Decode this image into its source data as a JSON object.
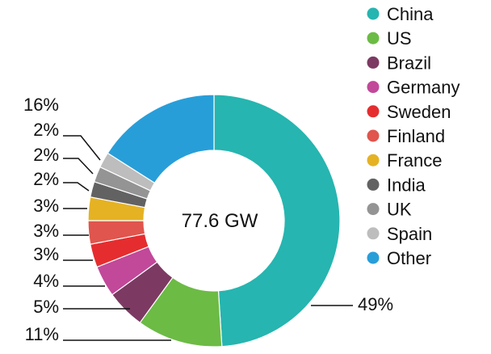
{
  "chart_data": {
    "type": "pie",
    "donut": true,
    "center_label": "77.6 GW",
    "legend_position": "top-right",
    "slices": [
      {
        "name": "China",
        "value": 49,
        "label": "49%",
        "color": "#26b5b0"
      },
      {
        "name": "US",
        "value": 11,
        "label": "11%",
        "color": "#6cbb45"
      },
      {
        "name": "Brazil",
        "value": 5,
        "label": "5%",
        "color": "#7c3a62"
      },
      {
        "name": "Germany",
        "value": 4,
        "label": "4%",
        "color": "#c2489a"
      },
      {
        "name": "Sweden",
        "value": 3,
        "label": "3%",
        "color": "#e52d2f"
      },
      {
        "name": "Finland",
        "value": 3,
        "label": "3%",
        "color": "#e0554d"
      },
      {
        "name": "France",
        "value": 3,
        "label": "3%",
        "color": "#e5b224"
      },
      {
        "name": "India",
        "value": 2,
        "label": "2%",
        "color": "#626262"
      },
      {
        "name": "UK",
        "value": 2,
        "label": "2%",
        "color": "#949494"
      },
      {
        "name": "Spain",
        "value": 2,
        "label": "2%",
        "color": "#bdbdbd"
      },
      {
        "name": "Other",
        "value": 16,
        "label": "16%",
        "color": "#289ed9"
      }
    ]
  }
}
